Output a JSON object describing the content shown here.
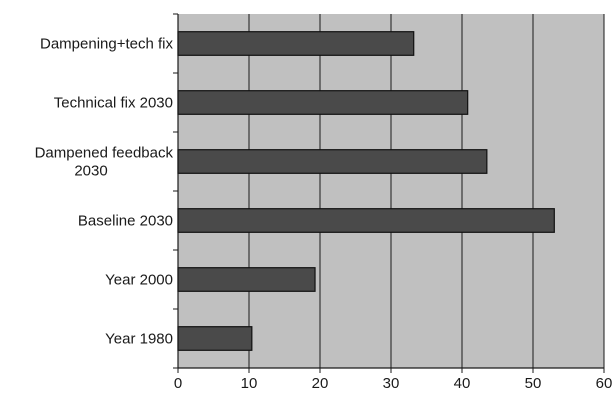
{
  "chart_data": {
    "type": "bar",
    "orientation": "horizontal",
    "title": "",
    "xlabel": "",
    "ylabel": "",
    "categories": [
      [
        "Dampening+tech fix"
      ],
      [
        "Technical fix 2030"
      ],
      [
        "Dampened feedback",
        "2030"
      ],
      [
        "Baseline 2030"
      ],
      [
        "Year 2000"
      ],
      [
        "Year 1980"
      ]
    ],
    "values": [
      33.2,
      40.8,
      43.5,
      53.0,
      19.3,
      10.4
    ],
    "xlim": [
      0,
      60
    ],
    "xticks": [
      "0",
      "10",
      "20",
      "30",
      "40",
      "50",
      "60"
    ],
    "grid": "vertical",
    "legend": "none",
    "colors": {
      "plot_background": "#c0c0c0",
      "bar_fill": "#4a4a4a",
      "bar_stroke": "#111111",
      "gridline": "#1a1a1a",
      "axis": "#1a1a1a"
    }
  }
}
